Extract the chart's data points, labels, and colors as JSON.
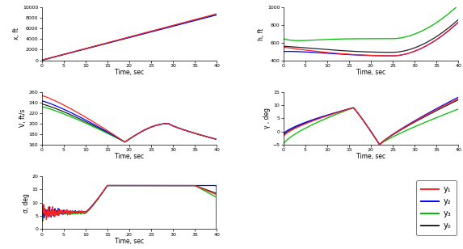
{
  "t_end": 40,
  "colors": {
    "red": "#ff2020",
    "blue": "#0000ff",
    "green": "#00bb00",
    "black": "#222222"
  },
  "line_width": 0.9,
  "legend_labels": [
    "y₁",
    "y₂",
    "y₃",
    "y₀"
  ],
  "axes": {
    "x": {
      "ylabel": "x, ft",
      "ylim": [
        0,
        10000
      ],
      "yticks": [
        0,
        2000,
        4000,
        6000,
        8000,
        10000
      ]
    },
    "h": {
      "ylabel": "h, ft",
      "ylim": [
        400,
        1000
      ],
      "yticks": [
        400,
        600,
        800,
        1000
      ]
    },
    "V": {
      "ylabel": "V, ft/s",
      "ylim": [
        160,
        260
      ],
      "yticks": [
        160,
        180,
        200,
        220,
        240,
        260
      ]
    },
    "gamma": {
      "ylabel": "γ , deg",
      "ylim": [
        -5,
        15
      ],
      "yticks": [
        -5,
        0,
        5,
        10,
        15
      ]
    },
    "sigma": {
      "ylabel": "σ, deg",
      "ylim": [
        0,
        20
      ],
      "yticks": [
        0,
        5,
        10,
        15,
        20
      ]
    }
  },
  "xlabel": "Time, sec",
  "xticks": [
    0,
    5,
    10,
    15,
    20,
    25,
    30,
    35,
    40
  ]
}
